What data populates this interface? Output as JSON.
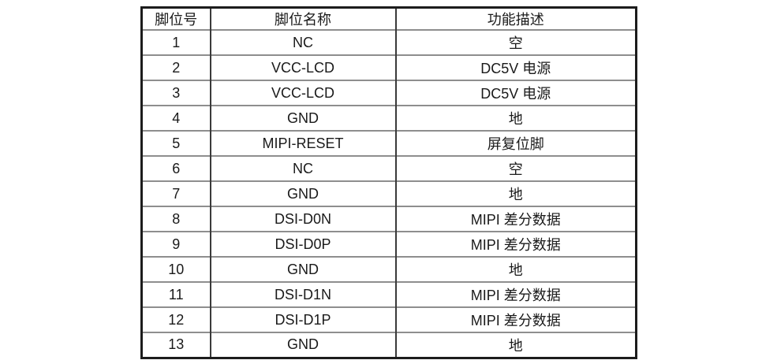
{
  "table": {
    "headers": [
      "脚位号",
      "脚位名称",
      "功能描述"
    ],
    "rows": [
      [
        "1",
        "NC",
        "空"
      ],
      [
        "2",
        "VCC-LCD",
        "DC5V 电源"
      ],
      [
        "3",
        "VCC-LCD",
        "DC5V 电源"
      ],
      [
        "4",
        "GND",
        "地"
      ],
      [
        "5",
        "MIPI-RESET",
        "屏复位脚"
      ],
      [
        "6",
        "NC",
        "空"
      ],
      [
        "7",
        "GND",
        "地"
      ],
      [
        "8",
        "DSI-D0N",
        "MIPI 差分数据"
      ],
      [
        "9",
        "DSI-D0P",
        "MIPI 差分数据"
      ],
      [
        "10",
        "GND",
        "地"
      ],
      [
        "11",
        "DSI-D1N",
        "MIPI 差分数据"
      ],
      [
        "12",
        "DSI-D1P",
        "MIPI 差分数据"
      ],
      [
        "13",
        "GND",
        "地"
      ]
    ],
    "colors": {
      "border_outer": "#1c1c1c",
      "border_inner_v": "#3a3a3a",
      "border_inner_h": "#8e8e8e",
      "text": "#1a1a1a",
      "background": "#ffffff"
    }
  }
}
